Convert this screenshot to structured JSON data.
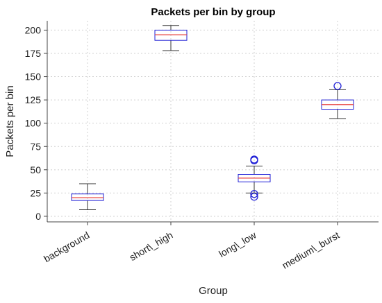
{
  "chart_data": {
    "type": "box",
    "title": "Packets per bin by group",
    "xlabel": "Group",
    "ylabel": "Packets per bin",
    "ylim": [
      -6,
      210
    ],
    "yticks": [
      0,
      25,
      50,
      75,
      100,
      125,
      150,
      175,
      200
    ],
    "grid": true,
    "categories": [
      "background",
      "short\\_high",
      "long\\_low",
      "medium\\_burst"
    ],
    "boxes": [
      {
        "category": "background",
        "whisker_low": 7,
        "q1": 17,
        "median": 20,
        "q3": 24,
        "whisker_high": 35,
        "outliers": []
      },
      {
        "category": "short\\_high",
        "whisker_low": 178,
        "q1": 189,
        "median": 195,
        "q3": 200,
        "whisker_high": 205,
        "outliers": []
      },
      {
        "category": "long\\_low",
        "whisker_low": 25,
        "q1": 37,
        "median": 41,
        "q3": 45,
        "whisker_high": 54,
        "outliers": [
          60,
          61,
          21,
          24
        ]
      },
      {
        "category": "medium\\_burst",
        "whisker_low": 105,
        "q1": 115,
        "median": 120,
        "q3": 125,
        "whisker_high": 136,
        "outliers": [
          140
        ]
      }
    ],
    "colors": {
      "box": "#1f1fd6",
      "median": "#e8413c",
      "whisker": "#333333",
      "outlier": "#1f1fd6"
    }
  }
}
